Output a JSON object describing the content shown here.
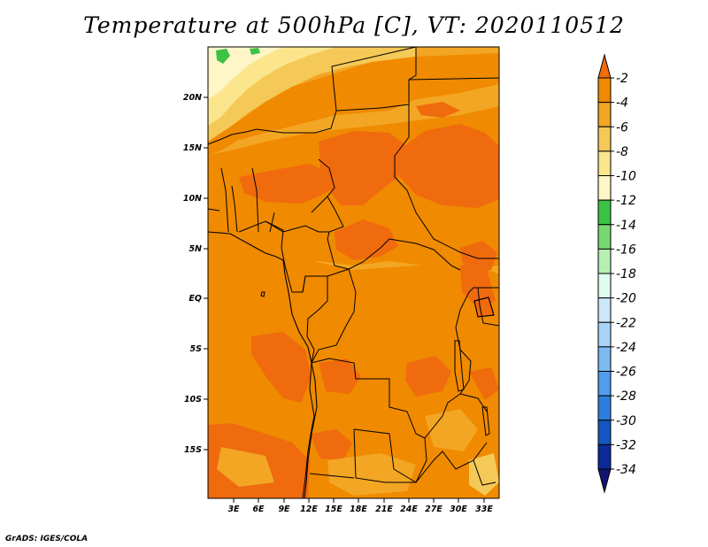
{
  "title": "Temperature at 500hPa [C], VT: 2020110512",
  "credit": "GrADS: IGES/COLA",
  "map": {
    "lat_labels": [
      "20N",
      "15N",
      "10N",
      "5N",
      "EQ",
      "5S",
      "10S",
      "15S"
    ],
    "lon_labels": [
      "3E",
      "6E",
      "9E",
      "12E",
      "15E",
      "18E",
      "21E",
      "24E",
      "27E",
      "30E",
      "33E"
    ]
  },
  "colorbar": {
    "labels": [
      "-2",
      "-4",
      "-6",
      "-8",
      "-10",
      "-12",
      "-14",
      "-16",
      "-18",
      "-20",
      "-22",
      "-24",
      "-26",
      "-28",
      "-30",
      "-32",
      "-34"
    ],
    "colors": [
      "#f06a0e",
      "#f08a00",
      "#f2a623",
      "#f5c957",
      "#fbe68e",
      "#fff6c8",
      "#3cc346",
      "#78d870",
      "#b7efb0",
      "#e1fbef",
      "#cce7fb",
      "#a8d4f8",
      "#7cbaf2",
      "#519cec",
      "#2c7fde",
      "#1656c4",
      "#0c2a98",
      "#111571"
    ]
  }
}
